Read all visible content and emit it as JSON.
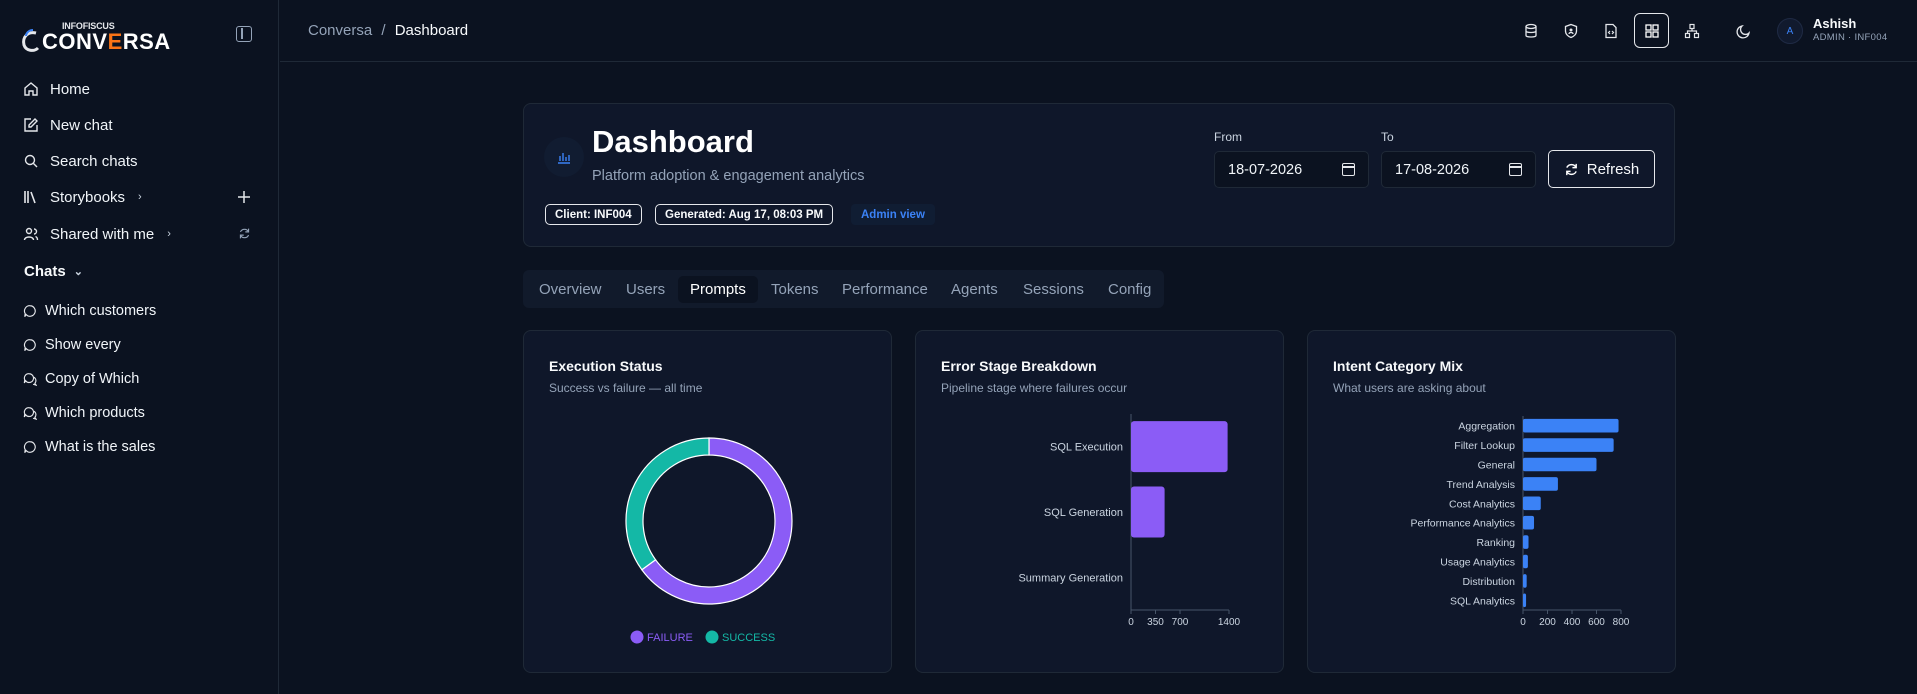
{
  "sidebar": {
    "logo_small": "INFOFISCUS",
    "logo_big_a": "CONV",
    "logo_big_b": "E",
    "logo_big_c": "RSA",
    "nav": [
      {
        "label": "Home",
        "icon": "home-icon"
      },
      {
        "label": "New chat",
        "icon": "edit-icon"
      },
      {
        "label": "Search chats",
        "icon": "search-icon"
      },
      {
        "label": "Storybooks",
        "icon": "library-icon"
      },
      {
        "label": "Shared with me",
        "icon": "users-icon"
      }
    ],
    "chats_heading": "Chats",
    "chats": [
      "Which customers",
      "Show every",
      "Copy of Which",
      "Which products",
      "What is the sales"
    ]
  },
  "topbar": {
    "crumb_root": "Conversa",
    "crumb_sep": "/",
    "crumb_current": "Dashboard",
    "user_initial": "A",
    "user_name": "Ashish",
    "user_role": "ADMIN · INF004"
  },
  "header": {
    "title": "Dashboard",
    "subtitle": "Platform adoption & engagement analytics",
    "badges": [
      "Client: INF004",
      "Generated: Aug 17, 08:03 PM"
    ],
    "admin_badge": "Admin view",
    "from_label": "From",
    "from_value": "18-07-2026",
    "to_label": "To",
    "to_value": "17-08-2026",
    "refresh_label": "Refresh"
  },
  "tabs": [
    "Overview",
    "Users",
    "Prompts",
    "Tokens",
    "Performance",
    "Agents",
    "Sessions",
    "Config"
  ],
  "active_tab": "Prompts",
  "colors": {
    "failure": "#8b5cf6",
    "success": "#14b8a6",
    "bar_purple": "#8b5cf6",
    "bar_blue": "#3b82f6",
    "accent_orange": "#f97316"
  },
  "cards": {
    "execution": {
      "title": "Execution Status",
      "subtitle": "Success vs failure — all time"
    },
    "error": {
      "title": "Error Stage Breakdown",
      "subtitle": "Pipeline stage where failures occur"
    },
    "intent": {
      "title": "Intent Category Mix",
      "subtitle": "What users are asking about"
    }
  },
  "chart_data": [
    {
      "type": "pie",
      "title": "Execution Status",
      "labels": [
        "FAILURE",
        "SUCCESS"
      ],
      "values": [
        65,
        35
      ],
      "donut": true,
      "legend": "bottom"
    },
    {
      "type": "bar",
      "orientation": "horizontal",
      "title": "Error Stage Breakdown",
      "categories": [
        "SQL Execution",
        "SQL Generation",
        "Summary Generation"
      ],
      "values": [
        1380,
        480,
        0
      ],
      "xticks": [
        0,
        350,
        700,
        1400
      ],
      "xlim": [
        0,
        1400
      ]
    },
    {
      "type": "bar",
      "orientation": "horizontal",
      "title": "Intent Category Mix",
      "categories": [
        "Aggregation",
        "Filter Lookup",
        "General",
        "Trend Analysis",
        "Cost Analytics",
        "Performance Analytics",
        "Ranking",
        "Usage Analytics",
        "Distribution",
        "SQL Analytics"
      ],
      "values": [
        780,
        740,
        600,
        285,
        145,
        90,
        45,
        40,
        30,
        25
      ],
      "xticks": [
        0,
        200,
        400,
        600,
        800
      ],
      "xlim": [
        0,
        800
      ]
    }
  ]
}
